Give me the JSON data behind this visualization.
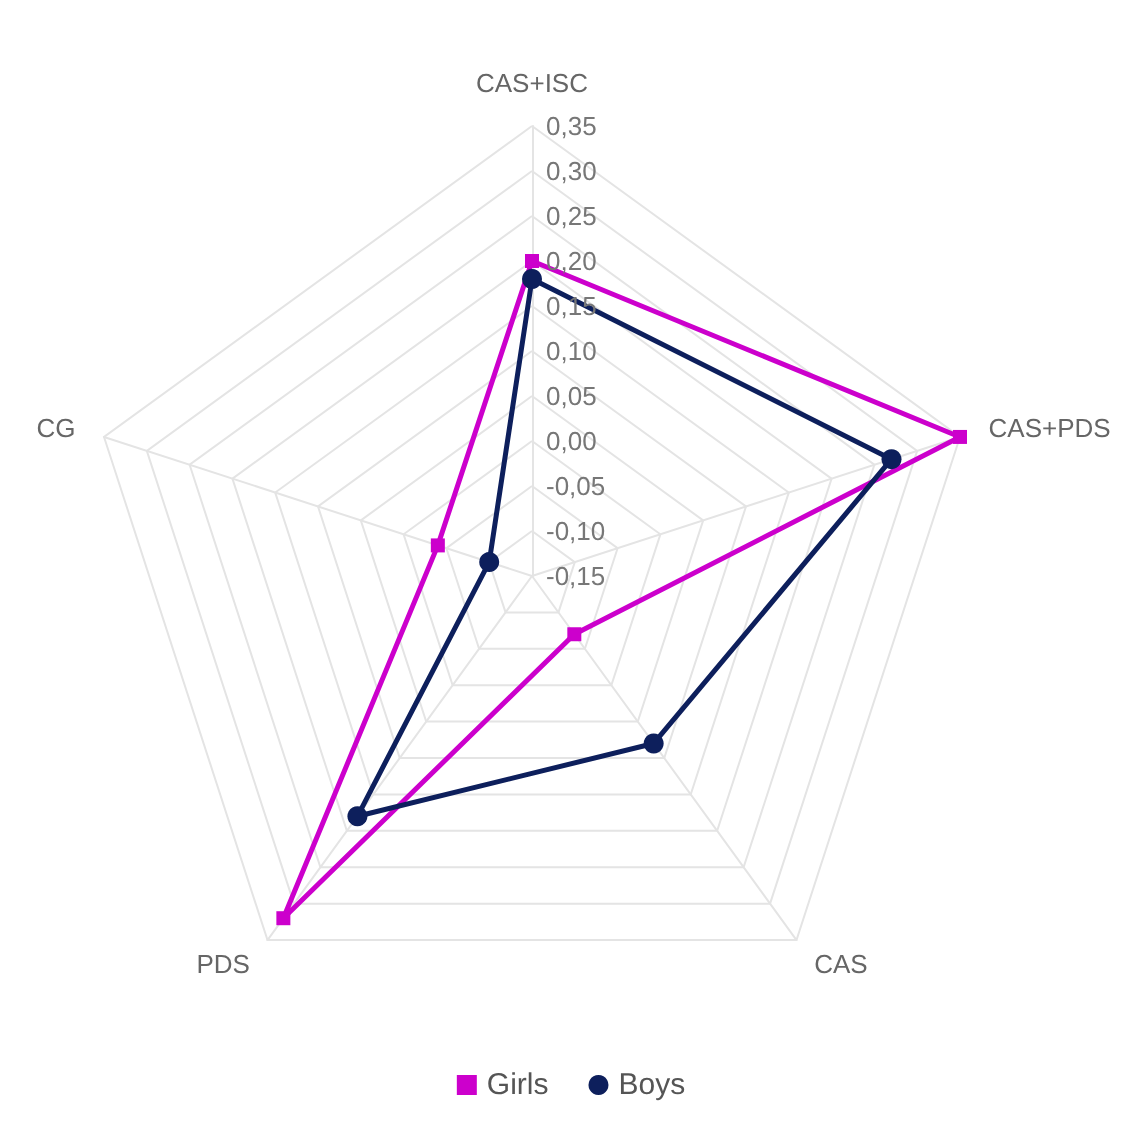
{
  "chart_data": {
    "type": "radar",
    "categories": [
      "CAS+ISC",
      "CAS+PDS",
      "CAS",
      "PDS",
      "CG"
    ],
    "series": [
      {
        "name": "Girls",
        "color": "#cc00cc",
        "marker": "square",
        "values": [
          0.2,
          0.35,
          -0.07,
          0.32,
          -0.04
        ]
      },
      {
        "name": "Boys",
        "color": "#0d1f5c",
        "marker": "circle",
        "values": [
          0.18,
          0.27,
          0.08,
          0.18,
          -0.1
        ]
      }
    ],
    "ylim": [
      -0.15,
      0.35
    ],
    "yticks": [
      {
        "value": -0.15,
        "label": "-0,15"
      },
      {
        "value": -0.1,
        "label": "-0,10"
      },
      {
        "value": -0.05,
        "label": "-0,05"
      },
      {
        "value": 0,
        "label": "0,00"
      },
      {
        "value": 0.05,
        "label": "0,05"
      },
      {
        "value": 0.1,
        "label": "0,10"
      },
      {
        "value": 0.15,
        "label": "0,15"
      },
      {
        "value": 0.2,
        "label": "0,20"
      },
      {
        "value": 0.25,
        "label": "0,25"
      },
      {
        "value": 0.3,
        "label": "0,30"
      },
      {
        "value": 0.35,
        "label": "0,35"
      }
    ],
    "legend": "bottom",
    "grid": true
  }
}
